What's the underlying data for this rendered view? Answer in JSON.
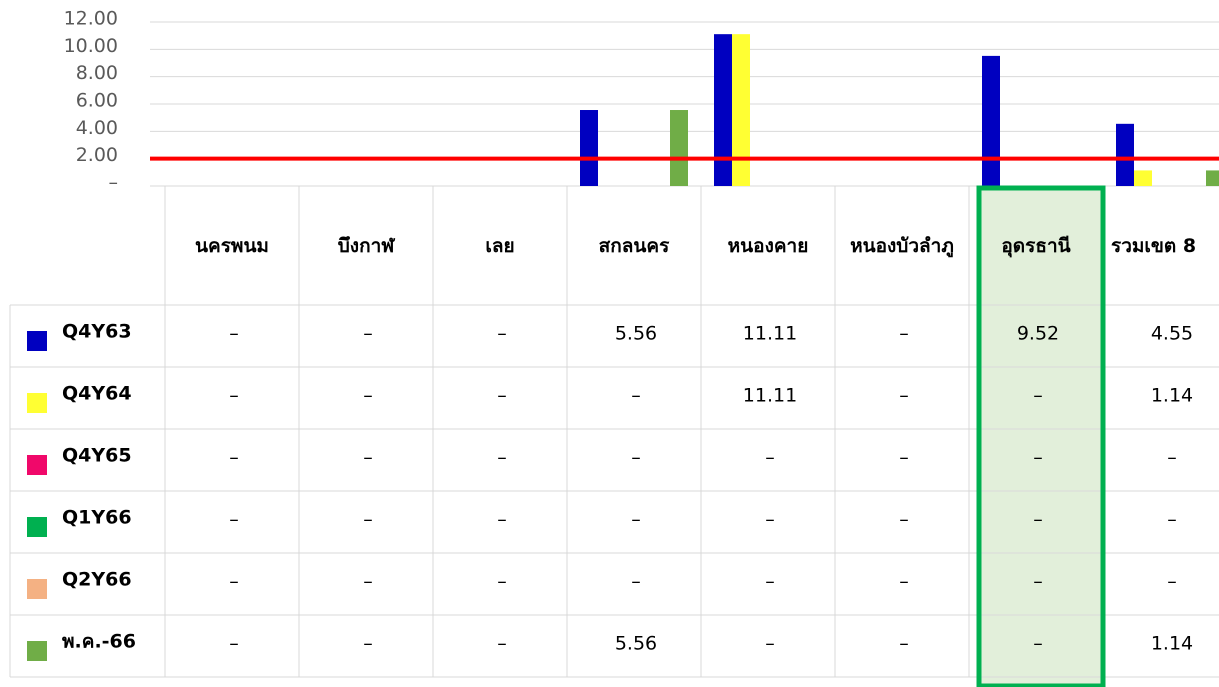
{
  "chart_data": {
    "type": "bar",
    "categories": [
      "นครพนม",
      "บึงกาฬ",
      "เลย",
      "สกลนคร",
      "หนองคาย",
      "หนองบัวลำภู",
      "อุดรธานี",
      "รวมเขต 8"
    ],
    "series": [
      {
        "name": "Q4Y63",
        "color": "#0000c0",
        "values": [
          0,
          0,
          0,
          5.56,
          11.11,
          0,
          9.52,
          4.55
        ],
        "value_labels": [
          "–",
          "–",
          "–",
          "5.56",
          "11.11",
          "–",
          "9.52",
          "4.55"
        ]
      },
      {
        "name": "Q4Y64",
        "color": "#ffff33",
        "values": [
          0,
          0,
          0,
          0,
          11.11,
          0,
          0,
          1.14
        ],
        "value_labels": [
          "–",
          "–",
          "–",
          "–",
          "11.11",
          "–",
          "–",
          "1.14"
        ]
      },
      {
        "name": "Q4Y65",
        "color": "#f0086a",
        "values": [
          0,
          0,
          0,
          0,
          0,
          0,
          0,
          0
        ],
        "value_labels": [
          "–",
          "–",
          "–",
          "–",
          "–",
          "–",
          "–",
          "–"
        ]
      },
      {
        "name": "Q1Y66",
        "color": "#00b050",
        "values": [
          0,
          0,
          0,
          0,
          0,
          0,
          0,
          0
        ],
        "value_labels": [
          "–",
          "–",
          "–",
          "–",
          "–",
          "–",
          "–",
          "–"
        ]
      },
      {
        "name": "Q2Y66",
        "color": "#f4b183",
        "values": [
          0,
          0,
          0,
          0,
          0,
          0,
          0,
          0
        ],
        "value_labels": [
          "–",
          "–",
          "–",
          "–",
          "–",
          "–",
          "–",
          "–"
        ]
      },
      {
        "name": "พ.ค.-66",
        "color": "#70ad47",
        "values": [
          0,
          0,
          0,
          5.56,
          0,
          0,
          0,
          1.14
        ],
        "value_labels": [
          "–",
          "–",
          "–",
          "5.56",
          "–",
          "–",
          "–",
          "1.14"
        ]
      }
    ],
    "ylim": [
      0,
      12
    ],
    "yticks": [
      {
        "value": 0,
        "label": "–"
      },
      {
        "value": 2,
        "label": "2.00"
      },
      {
        "value": 4,
        "label": "4.00"
      },
      {
        "value": 6,
        "label": "6.00"
      },
      {
        "value": 8,
        "label": "8.00"
      },
      {
        "value": 10,
        "label": "10.00"
      },
      {
        "value": 12,
        "label": "12.00"
      }
    ],
    "grid": true,
    "target_line": {
      "value": 2,
      "color": "#ff0000"
    },
    "highlight_index": 6,
    "highlight_color": "#00b050"
  }
}
